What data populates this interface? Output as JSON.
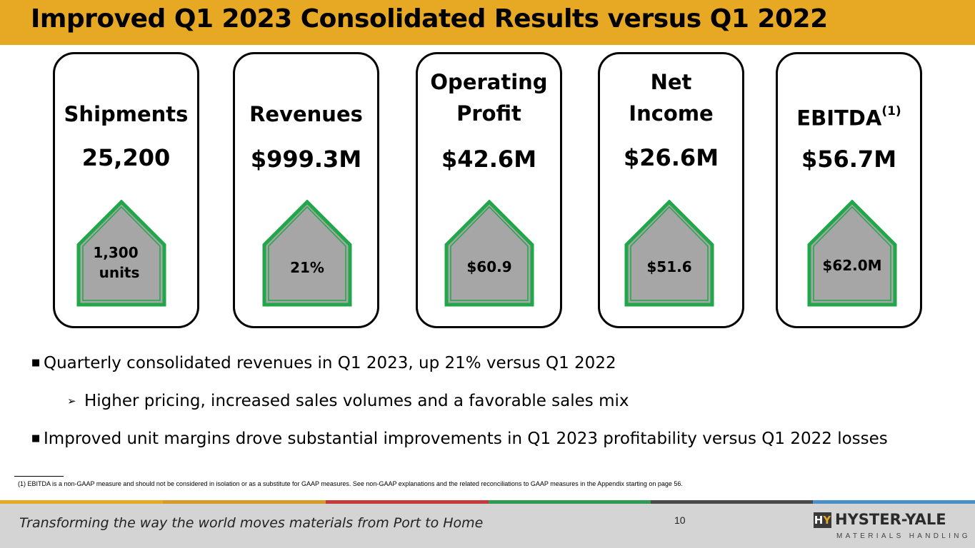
{
  "slide": {
    "title": "Improved Q1 2023 Consolidated Results versus Q1 2022"
  },
  "cards": [
    {
      "label": "Shipments",
      "value": "25,200",
      "delta_line1": "1,300",
      "delta_line2": "units"
    },
    {
      "label": "Revenues",
      "value": "$999.3M",
      "delta": "21%"
    },
    {
      "label_line1": "Operating",
      "label_line2": "Profit",
      "value": "$42.6M",
      "delta": "$60.9"
    },
    {
      "label_line1": "Net",
      "label_line2": "Income",
      "value": "$26.6M",
      "delta": "$51.6"
    },
    {
      "label": "EBITDA",
      "label_sup": "(1)",
      "value": "$56.7M",
      "delta": "$62.0M"
    }
  ],
  "bullets": {
    "b1": "Quarterly consolidated revenues in Q1 2023, up 21% versus Q1 2022",
    "b1_sub": "Higher pricing, increased sales volumes and a favorable sales mix",
    "b2": "Improved unit margins drove substantial improvements in Q1 2023 profitability versus Q1 2022 losses"
  },
  "footnote": "(1) EBITDA is a non-GAAP measure and should not be considered in isolation or as a substitute for GAAP measures. See non-GAAP explanations and the related reconciliations to GAAP measures in the Appendix starting on page 56.",
  "footer": {
    "tagline": "Transforming the way the world moves materials from Port to Home",
    "page_number": "10",
    "logo_mark_h": "H",
    "logo_mark_y": "Y",
    "logo_name": "HYSTER-YALE",
    "logo_sub": "MATERIALS HANDLING"
  },
  "colors": {
    "title_bar": "#e7a823",
    "house_fill": "#a6a6a6",
    "house_stroke": "#21a64a",
    "footer_bg": "#d4d4d4",
    "stripe": [
      "#e7a823",
      "#e7a823",
      "#c43b3b",
      "#2e9a52",
      "#4a4a4a",
      "#4a8fc7"
    ]
  }
}
